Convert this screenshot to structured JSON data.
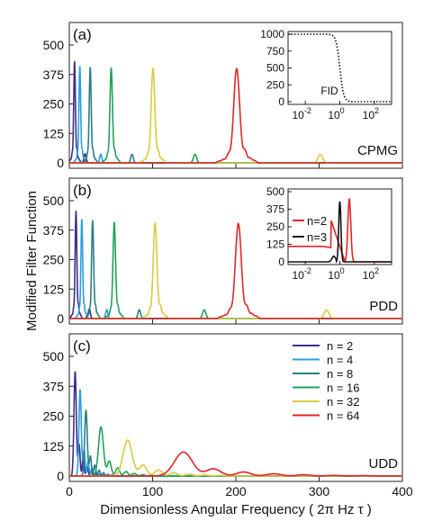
{
  "chart_data": {
    "type": "line",
    "xlabel": "Dimensionless Angular Frequency ( 2π Hz τ )",
    "ylabel": "Modified Filter Function",
    "xlim": [
      0,
      400
    ],
    "x_ticks": [
      "0",
      "100",
      "200",
      "300",
      "400"
    ],
    "ylim": [
      0,
      520
    ],
    "y_ticks": [
      "0",
      "125",
      "250",
      "375",
      "500"
    ],
    "series_colors": {
      "n = 2": "#3a2f8f",
      "n = 4": "#2a9fdc",
      "n = 8": "#2e7f86",
      "n = 16": "#20a35a",
      "n = 32": "#d8cc3c",
      "n = 64": "#e0262a"
    },
    "legend": {
      "placement": "top-right of panel (c)",
      "entries": [
        "n = 2",
        "n = 4",
        "n = 8",
        "n = 16",
        "n = 32",
        "n = 64"
      ]
    },
    "panels": [
      {
        "tag": "(a)",
        "name": "CPMG",
        "peaks": [
          {
            "series": "n = 2",
            "x": 6.3,
            "y": 430
          },
          {
            "series": "n = 4",
            "x": 12.6,
            "y": 410
          },
          {
            "series": "n = 8",
            "x": 25.1,
            "y": 405
          },
          {
            "series": "n = 16",
            "x": 50.3,
            "y": 402
          },
          {
            "series": "n = 32",
            "x": 100.5,
            "y": 401
          },
          {
            "series": "n = 64",
            "x": 201,
            "y": 400
          }
        ],
        "inset": {
          "x_ticks": [
            "10-2",
            "100",
            "102"
          ],
          "y_ticks": [
            "0",
            "250",
            "500",
            "750",
            "1000"
          ],
          "ylim": [
            0,
            1000
          ],
          "annotation": "FID",
          "series": [
            {
              "name": "FID",
              "style": "dotted",
              "color": "#111111"
            }
          ]
        }
      },
      {
        "tag": "(b)",
        "name": "PDD",
        "peaks": [
          {
            "series": "n = 2",
            "x": 8,
            "y": 455
          },
          {
            "series": "n = 4",
            "x": 15,
            "y": 420
          },
          {
            "series": "n = 8",
            "x": 28,
            "y": 415
          },
          {
            "series": "n = 16",
            "x": 54,
            "y": 408
          },
          {
            "series": "n = 32",
            "x": 103,
            "y": 405
          },
          {
            "series": "n = 64",
            "x": 203,
            "y": 403
          }
        ],
        "inset": {
          "x_ticks": [
            "10-2",
            "100",
            "102"
          ],
          "y_ticks": [
            "0",
            "125",
            "250",
            "375",
            "500"
          ],
          "ylim": [
            0,
            500
          ],
          "legend": [
            "n=2",
            "n=3"
          ],
          "series": [
            {
              "name": "n=2",
              "color": "#e0262a"
            },
            {
              "name": "n=3",
              "color": "#111111"
            }
          ]
        }
      },
      {
        "tag": "(c)",
        "name": "UDD",
        "peaks": [
          {
            "series": "n = 2",
            "x": 7,
            "y": 435
          },
          {
            "series": "n = 4",
            "x": 13,
            "y": 360
          },
          {
            "series": "n = 8",
            "x": 20,
            "y": 275
          },
          {
            "series": "n = 16",
            "x": 38,
            "y": 205
          },
          {
            "series": "n = 32",
            "x": 70,
            "y": 150
          },
          {
            "series": "n = 64",
            "x": 137,
            "y": 100
          }
        ]
      }
    ]
  }
}
